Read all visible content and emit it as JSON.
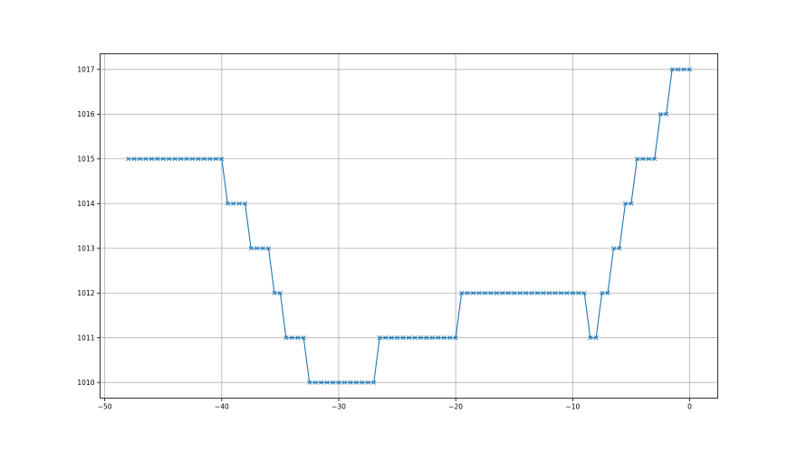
{
  "chart_data": {
    "type": "line",
    "title": "",
    "xlabel": "",
    "ylabel": "",
    "xlim": [
      -50.4,
      2.4
    ],
    "ylim": [
      1009.65,
      1017.35
    ],
    "xticks": [
      -50,
      -40,
      -30,
      -20,
      -10,
      0
    ],
    "yticks": [
      1010,
      1011,
      1012,
      1013,
      1014,
      1015,
      1016,
      1017
    ],
    "grid": true,
    "marker": "x",
    "color": "#1f77b4",
    "x": [
      -48,
      -47.5,
      -47,
      -46.5,
      -46,
      -45.5,
      -45,
      -44.5,
      -44,
      -43.5,
      -43,
      -42.5,
      -42,
      -41.5,
      -41,
      -40.5,
      -40,
      -39.5,
      -39,
      -38.5,
      -38,
      -37.5,
      -37,
      -36.5,
      -36,
      -35.5,
      -35,
      -34.5,
      -34,
      -33.5,
      -33,
      -32.5,
      -32,
      -31.5,
      -31,
      -30.5,
      -30,
      -29.5,
      -29,
      -28.5,
      -28,
      -27.5,
      -27,
      -26.5,
      -26,
      -25.5,
      -25,
      -24.5,
      -24,
      -23.5,
      -23,
      -22.5,
      -22,
      -21.5,
      -21,
      -20.5,
      -20,
      -19.5,
      -19,
      -18.5,
      -18,
      -17.5,
      -17,
      -16.5,
      -16,
      -15.5,
      -15,
      -14.5,
      -14,
      -13.5,
      -13,
      -12.5,
      -12,
      -11.5,
      -11,
      -10.5,
      -10,
      -9.5,
      -9,
      -8.5,
      -8,
      -7.5,
      -7,
      -6.5,
      -6,
      -5.5,
      -5,
      -4.5,
      -4,
      -3.5,
      -3,
      -2.5,
      -2,
      -1.5,
      -1,
      -0.5,
      0
    ],
    "y": [
      1015,
      1015,
      1015,
      1015,
      1015,
      1015,
      1015,
      1015,
      1015,
      1015,
      1015,
      1015,
      1015,
      1015,
      1015,
      1015,
      1015,
      1014,
      1014,
      1014,
      1014,
      1013,
      1013,
      1013,
      1013,
      1012,
      1012,
      1011,
      1011,
      1011,
      1011,
      1010,
      1010,
      1010,
      1010,
      1010,
      1010,
      1010,
      1010,
      1010,
      1010,
      1010,
      1010,
      1011,
      1011,
      1011,
      1011,
      1011,
      1011,
      1011,
      1011,
      1011,
      1011,
      1011,
      1011,
      1011,
      1011,
      1012,
      1012,
      1012,
      1012,
      1012,
      1012,
      1012,
      1012,
      1012,
      1012,
      1012,
      1012,
      1012,
      1012,
      1012,
      1012,
      1012,
      1012,
      1012,
      1012,
      1012,
      1012,
      1011,
      1011,
      1012,
      1012,
      1013,
      1013,
      1014,
      1014,
      1015,
      1015,
      1015,
      1015,
      1016,
      1016,
      1017,
      1017,
      1017,
      1017
    ]
  }
}
